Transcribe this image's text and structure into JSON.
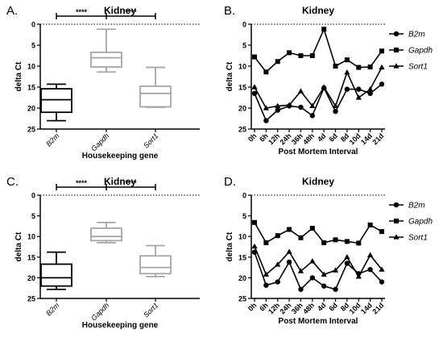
{
  "chart_data": [
    {
      "panel": "A.",
      "type": "box",
      "title": "Kidney",
      "xlabel": "Housekeeping gene",
      "ylabel": "delta Ct",
      "y_axis_inverted": true,
      "ylim": [
        0,
        25
      ],
      "yticks": [
        "0",
        "5",
        "10",
        "15",
        "20",
        "25"
      ],
      "reference_line": 0,
      "categories": [
        "B2m",
        "Gapdh",
        "Sort1"
      ],
      "boxes": [
        {
          "category": "B2m",
          "color": "#000000",
          "min": 14.3,
          "q1": 15.4,
          "median": 18.0,
          "q3": 21.0,
          "max": 23.0
        },
        {
          "category": "Gapdh",
          "color": "#a6a6a6",
          "min": 1.2,
          "q1": 6.7,
          "median": 8.0,
          "q3": 10.2,
          "max": 11.4
        },
        {
          "category": "Sort1",
          "color": "#a6a6a6",
          "min": 10.3,
          "q1": 14.8,
          "median": 16.5,
          "q3": 19.7,
          "max": 19.8
        }
      ],
      "significance": [
        {
          "from": "B2m",
          "to": "Gapdh",
          "label": "****"
        },
        {
          "from": "Gapdh",
          "to": "Sort1",
          "label": "****"
        }
      ]
    },
    {
      "panel": "B.",
      "type": "line",
      "title": "Kidney",
      "xlabel": "Post Mortem Interval",
      "ylabel": "delta Ct",
      "y_axis_inverted": true,
      "ylim": [
        0,
        25
      ],
      "yticks": [
        "0",
        "5",
        "10",
        "15",
        "20",
        "25"
      ],
      "reference_line": 0,
      "x": [
        "0h",
        "6h",
        "12h",
        "24h",
        "36h",
        "48h",
        "4d",
        "6d",
        "8d",
        "10d",
        "14d",
        "21d"
      ],
      "legend_position": "right",
      "series": [
        {
          "name": "B2m",
          "marker": "circle",
          "values": [
            16.5,
            23.0,
            20.5,
            19.5,
            19.8,
            21.8,
            15.2,
            20.8,
            15.5,
            15.5,
            16.5,
            14.3
          ]
        },
        {
          "name": "Gapdh",
          "marker": "square",
          "values": [
            7.8,
            11.4,
            8.9,
            6.8,
            7.5,
            7.5,
            1.2,
            10.0,
            8.5,
            10.3,
            10.2,
            6.4
          ]
        },
        {
          "name": "Sort1",
          "marker": "triangle",
          "values": [
            15.0,
            20.0,
            19.5,
            19.3,
            16.0,
            19.5,
            15.0,
            19.5,
            11.5,
            17.5,
            15.5,
            10.3
          ]
        }
      ]
    },
    {
      "panel": "C.",
      "type": "box",
      "title": "Kidney",
      "xlabel": "Housekeeping gene",
      "ylabel": "delta Ct",
      "y_axis_inverted": true,
      "ylim": [
        0,
        25
      ],
      "yticks": [
        "0",
        "5",
        "10",
        "15",
        "20",
        "25"
      ],
      "reference_line": 0,
      "categories": [
        "B2m",
        "Gapdh",
        "Sort1"
      ],
      "boxes": [
        {
          "category": "B2m",
          "color": "#000000",
          "min": 13.8,
          "q1": 16.7,
          "median": 20.0,
          "q3": 22.0,
          "max": 22.8
        },
        {
          "category": "Gapdh",
          "color": "#a6a6a6",
          "min": 6.6,
          "q1": 8.0,
          "median": 10.0,
          "q3": 11.0,
          "max": 11.5
        },
        {
          "category": "Sort1",
          "color": "#a6a6a6",
          "min": 12.2,
          "q1": 14.7,
          "median": 17.5,
          "q3": 19.0,
          "max": 19.7
        }
      ],
      "significance": [
        {
          "from": "B2m",
          "to": "Gapdh",
          "label": "****"
        },
        {
          "from": "Gapdh",
          "to": "Sort1",
          "label": "****"
        }
      ]
    },
    {
      "panel": "D.",
      "type": "line",
      "title": "Kidney",
      "xlabel": "Post Mortem Interval",
      "ylabel": "delta Ct",
      "y_axis_inverted": true,
      "ylim": [
        0,
        25
      ],
      "yticks": [
        "0",
        "5",
        "10",
        "15",
        "20",
        "25"
      ],
      "reference_line": 0,
      "x": [
        "0h",
        "6h",
        "12h",
        "24h",
        "36h",
        "48h",
        "4d",
        "6d",
        "8d",
        "10d",
        "14d",
        "21d"
      ],
      "legend_position": "right",
      "series": [
        {
          "name": "B2m",
          "marker": "circle",
          "values": [
            13.8,
            21.8,
            21.0,
            16.2,
            22.8,
            20.0,
            22.0,
            22.8,
            16.5,
            19.0,
            18.0,
            21.0
          ]
        },
        {
          "name": "Gapdh",
          "marker": "square",
          "values": [
            6.6,
            11.5,
            9.8,
            8.3,
            10.3,
            8.0,
            11.5,
            10.8,
            11.2,
            11.6,
            7.2,
            8.8
          ]
        },
        {
          "name": "Sort1",
          "marker": "triangle",
          "values": [
            12.4,
            19.2,
            16.8,
            13.7,
            18.4,
            16.0,
            19.2,
            18.2,
            15.0,
            19.7,
            14.5,
            18.0
          ]
        }
      ]
    }
  ]
}
